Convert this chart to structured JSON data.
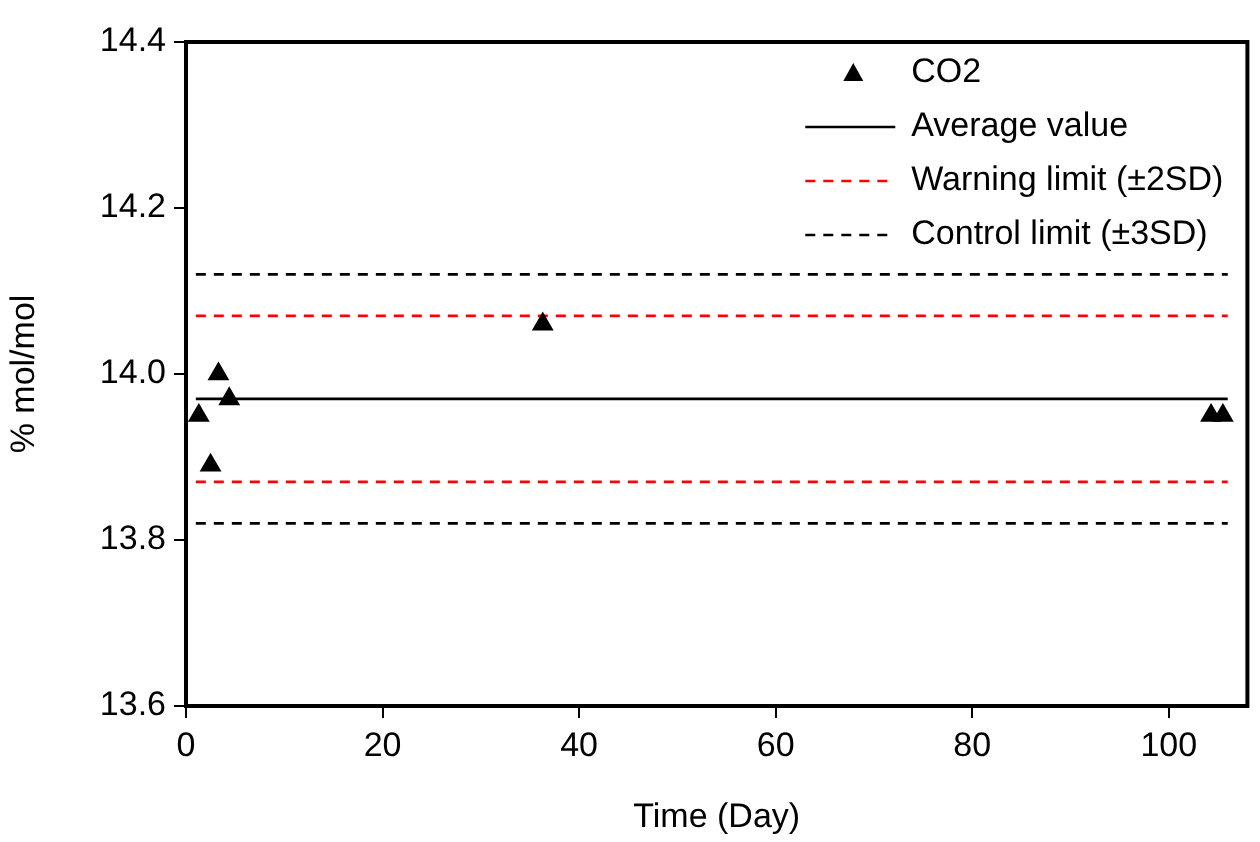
{
  "chart_data": {
    "type": "scatter",
    "xlabel": "Time (Day)",
    "ylabel": "% mol/mol",
    "xlim": [
      0,
      108
    ],
    "xticks": [
      0,
      20,
      40,
      60,
      80,
      100
    ],
    "ylim": [
      13.6,
      14.4
    ],
    "yticks": [
      {
        "value": 13.6,
        "label": "13.6"
      },
      {
        "value": 13.8,
        "label": "13.8"
      },
      {
        "value": 14.0,
        "label": "14.0"
      },
      {
        "value": 14.2,
        "label": "14.2"
      },
      {
        "value": 14.4,
        "label": "14.4"
      }
    ],
    "grid": false,
    "legend": "top right",
    "series": [
      {
        "name": "CO2",
        "color": "#000000",
        "marker": "triangle",
        "x": [
          1.3,
          2.5,
          3.3,
          4.4,
          36.3,
          104.3,
          105.5
        ],
        "values": [
          13.95,
          13.89,
          14.0,
          13.97,
          14.06,
          13.95,
          13.95
        ]
      },
      {
        "name": "Average value",
        "type": "line",
        "color": "#000000",
        "marker": "none",
        "line_style": "solid",
        "x": [
          1,
          106
        ],
        "values": [
          13.97,
          13.97
        ]
      },
      {
        "name": "Warning limit (±2SD)",
        "type": "line",
        "color": "#ff0000",
        "marker": "none",
        "line_style": "dashed",
        "x": [
          1,
          106
        ],
        "values": [
          14.07,
          14.07
        ]
      },
      {
        "type": "line",
        "color": "#ff0000",
        "marker": "none",
        "line_style": "dashed",
        "x": [
          1,
          106
        ],
        "values": [
          13.87,
          13.87
        ]
      },
      {
        "name": "Control limit (±3SD)",
        "type": "line",
        "color": "#000000",
        "marker": "none",
        "line_style": "dashed",
        "x": [
          1,
          106
        ],
        "values": [
          14.12,
          14.12
        ]
      },
      {
        "type": "line",
        "color": "#000000",
        "marker": "none",
        "line_style": "dashed",
        "x": [
          1,
          106
        ],
        "values": [
          13.82,
          13.82
        ]
      }
    ]
  }
}
